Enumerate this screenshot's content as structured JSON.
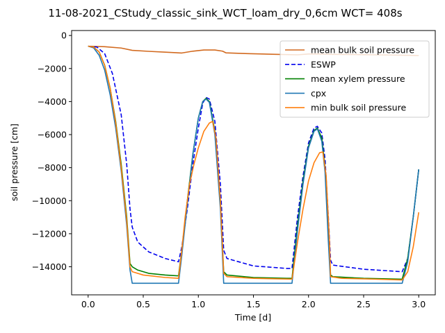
{
  "chart_data": {
    "type": "line",
    "title": "11-08-2021_CStudy_classic_sink_WCT_loam_dry_0,6cm  WCT= 408s",
    "xlabel": "Time [d]",
    "ylabel": "soil pressure [cm]",
    "xlim": [
      -0.15,
      3.15
    ],
    "ylim": [
      -15700,
      300
    ],
    "xticks": [
      0.0,
      0.5,
      1.0,
      1.5,
      2.0,
      2.5,
      3.0
    ],
    "xtick_labels": [
      "0.0",
      "0.5",
      "1.0",
      "1.5",
      "2.0",
      "2.5",
      "3.0"
    ],
    "yticks": [
      0,
      -2000,
      -4000,
      -6000,
      -8000,
      -10000,
      -12000,
      -14000
    ],
    "ytick_labels": [
      "0",
      "−2000",
      "−4000",
      "−6000",
      "−8000",
      "−10000",
      "−12000",
      "−14000"
    ],
    "grid": false,
    "legend_position": "top-right",
    "series": [
      {
        "name": "mean bulk soil pressure",
        "color": "#d2691e",
        "style": "solid",
        "points": [
          [
            0,
            -650
          ],
          [
            0.15,
            -680
          ],
          [
            0.3,
            -760
          ],
          [
            0.4,
            -900
          ],
          [
            0.55,
            -960
          ],
          [
            0.7,
            -1010
          ],
          [
            0.85,
            -1060
          ],
          [
            0.95,
            -950
          ],
          [
            1.05,
            -880
          ],
          [
            1.15,
            -880
          ],
          [
            1.22,
            -950
          ],
          [
            1.25,
            -1050
          ],
          [
            1.45,
            -1100
          ],
          [
            1.7,
            -1140
          ],
          [
            1.9,
            -1170
          ],
          [
            2.0,
            -1120
          ],
          [
            2.1,
            -1120
          ],
          [
            2.2,
            -1140
          ],
          [
            2.4,
            -1150
          ],
          [
            2.7,
            -1180
          ],
          [
            2.9,
            -1200
          ],
          [
            3.0,
            -1220
          ]
        ]
      },
      {
        "name": "ESWP",
        "color": "#0000ee",
        "style": "dashed",
        "points": [
          [
            0,
            -650
          ],
          [
            0.08,
            -700
          ],
          [
            0.15,
            -1100
          ],
          [
            0.22,
            -2300
          ],
          [
            0.3,
            -4800
          ],
          [
            0.35,
            -7800
          ],
          [
            0.38,
            -10500
          ],
          [
            0.4,
            -11600
          ],
          [
            0.45,
            -12500
          ],
          [
            0.55,
            -13100
          ],
          [
            0.7,
            -13500
          ],
          [
            0.82,
            -13700
          ],
          [
            0.85,
            -12800
          ],
          [
            0.9,
            -10500
          ],
          [
            0.95,
            -7800
          ],
          [
            1.0,
            -5600
          ],
          [
            1.04,
            -4100
          ],
          [
            1.07,
            -3750
          ],
          [
            1.1,
            -3850
          ],
          [
            1.15,
            -5200
          ],
          [
            1.2,
            -9000
          ],
          [
            1.23,
            -13000
          ],
          [
            1.26,
            -13500
          ],
          [
            1.5,
            -13950
          ],
          [
            1.8,
            -14100
          ],
          [
            1.85,
            -14100
          ],
          [
            1.9,
            -11000
          ],
          [
            1.95,
            -8500
          ],
          [
            2.0,
            -6500
          ],
          [
            2.05,
            -5600
          ],
          [
            2.08,
            -5500
          ],
          [
            2.12,
            -5900
          ],
          [
            2.15,
            -7500
          ],
          [
            2.18,
            -11000
          ],
          [
            2.2,
            -13600
          ],
          [
            2.22,
            -13900
          ],
          [
            2.5,
            -14150
          ],
          [
            2.85,
            -14300
          ],
          [
            2.9,
            -13500
          ],
          [
            2.95,
            -11000
          ],
          [
            3.0,
            -8100
          ]
        ]
      },
      {
        "name": "mean xylem pressure",
        "color": "#008000",
        "style": "solid",
        "points": [
          [
            0,
            -650
          ],
          [
            0.05,
            -700
          ],
          [
            0.1,
            -1000
          ],
          [
            0.15,
            -1800
          ],
          [
            0.2,
            -3200
          ],
          [
            0.25,
            -5200
          ],
          [
            0.3,
            -7800
          ],
          [
            0.35,
            -11000
          ],
          [
            0.38,
            -13800
          ],
          [
            0.4,
            -14000
          ],
          [
            0.45,
            -14200
          ],
          [
            0.55,
            -14400
          ],
          [
            0.7,
            -14500
          ],
          [
            0.82,
            -14550
          ],
          [
            0.85,
            -13000
          ],
          [
            0.9,
            -10000
          ],
          [
            0.95,
            -7200
          ],
          [
            1.0,
            -5000
          ],
          [
            1.04,
            -4000
          ],
          [
            1.07,
            -3800
          ],
          [
            1.1,
            -4000
          ],
          [
            1.15,
            -5800
          ],
          [
            1.2,
            -10000
          ],
          [
            1.23,
            -14300
          ],
          [
            1.26,
            -14500
          ],
          [
            1.5,
            -14650
          ],
          [
            1.8,
            -14700
          ],
          [
            1.85,
            -14700
          ],
          [
            1.9,
            -11500
          ],
          [
            1.95,
            -8800
          ],
          [
            2.0,
            -6700
          ],
          [
            2.05,
            -5750
          ],
          [
            2.08,
            -5600
          ],
          [
            2.12,
            -6200
          ],
          [
            2.15,
            -8000
          ],
          [
            2.18,
            -12000
          ],
          [
            2.2,
            -14500
          ],
          [
            2.22,
            -14600
          ],
          [
            2.5,
            -14700
          ],
          [
            2.85,
            -14750
          ],
          [
            2.9,
            -13500
          ],
          [
            2.95,
            -11000
          ],
          [
            3.0,
            -8100
          ]
        ]
      },
      {
        "name": "cpx",
        "color": "#1f77b4",
        "style": "solid",
        "points": [
          [
            0,
            -650
          ],
          [
            0.05,
            -750
          ],
          [
            0.1,
            -1200
          ],
          [
            0.15,
            -2100
          ],
          [
            0.2,
            -3600
          ],
          [
            0.25,
            -5600
          ],
          [
            0.3,
            -8200
          ],
          [
            0.35,
            -11500
          ],
          [
            0.38,
            -14200
          ],
          [
            0.4,
            -15000
          ],
          [
            0.6,
            -15000
          ],
          [
            0.82,
            -15000
          ],
          [
            0.85,
            -13300
          ],
          [
            0.9,
            -10200
          ],
          [
            0.95,
            -7200
          ],
          [
            1.0,
            -5000
          ],
          [
            1.04,
            -4000
          ],
          [
            1.07,
            -3850
          ],
          [
            1.1,
            -4050
          ],
          [
            1.15,
            -6000
          ],
          [
            1.2,
            -10500
          ],
          [
            1.23,
            -15000
          ],
          [
            1.5,
            -15000
          ],
          [
            1.85,
            -15000
          ],
          [
            1.9,
            -11800
          ],
          [
            1.95,
            -9000
          ],
          [
            2.0,
            -6800
          ],
          [
            2.05,
            -5800
          ],
          [
            2.08,
            -5650
          ],
          [
            2.12,
            -6400
          ],
          [
            2.15,
            -8300
          ],
          [
            2.18,
            -12500
          ],
          [
            2.2,
            -15000
          ],
          [
            2.5,
            -15000
          ],
          [
            2.85,
            -15000
          ],
          [
            2.9,
            -13700
          ],
          [
            2.95,
            -11000
          ],
          [
            3.0,
            -8100
          ]
        ]
      },
      {
        "name": "min bulk soil pressure",
        "color": "#ff7f0e",
        "style": "solid",
        "points": [
          [
            0,
            -650
          ],
          [
            0.05,
            -700
          ],
          [
            0.1,
            -1000
          ],
          [
            0.15,
            -1800
          ],
          [
            0.2,
            -3200
          ],
          [
            0.25,
            -5300
          ],
          [
            0.3,
            -8000
          ],
          [
            0.35,
            -11200
          ],
          [
            0.38,
            -14000
          ],
          [
            0.4,
            -14300
          ],
          [
            0.5,
            -14500
          ],
          [
            0.7,
            -14650
          ],
          [
            0.82,
            -14700
          ],
          [
            0.85,
            -13000
          ],
          [
            0.88,
            -11000
          ],
          [
            0.92,
            -9000
          ],
          [
            0.96,
            -7800
          ],
          [
            1.0,
            -6800
          ],
          [
            1.05,
            -5800
          ],
          [
            1.1,
            -5300
          ],
          [
            1.13,
            -5200
          ],
          [
            1.16,
            -6200
          ],
          [
            1.2,
            -10000
          ],
          [
            1.23,
            -14400
          ],
          [
            1.26,
            -14600
          ],
          [
            1.5,
            -14700
          ],
          [
            1.85,
            -14750
          ],
          [
            1.9,
            -12500
          ],
          [
            1.95,
            -10500
          ],
          [
            2.0,
            -8800
          ],
          [
            2.05,
            -7700
          ],
          [
            2.1,
            -7100
          ],
          [
            2.13,
            -7050
          ],
          [
            2.16,
            -8500
          ],
          [
            2.19,
            -12500
          ],
          [
            2.2,
            -14600
          ],
          [
            2.3,
            -14700
          ],
          [
            2.6,
            -14750
          ],
          [
            2.85,
            -14800
          ],
          [
            2.9,
            -14300
          ],
          [
            2.95,
            -12800
          ],
          [
            3.0,
            -10700
          ]
        ]
      }
    ]
  }
}
